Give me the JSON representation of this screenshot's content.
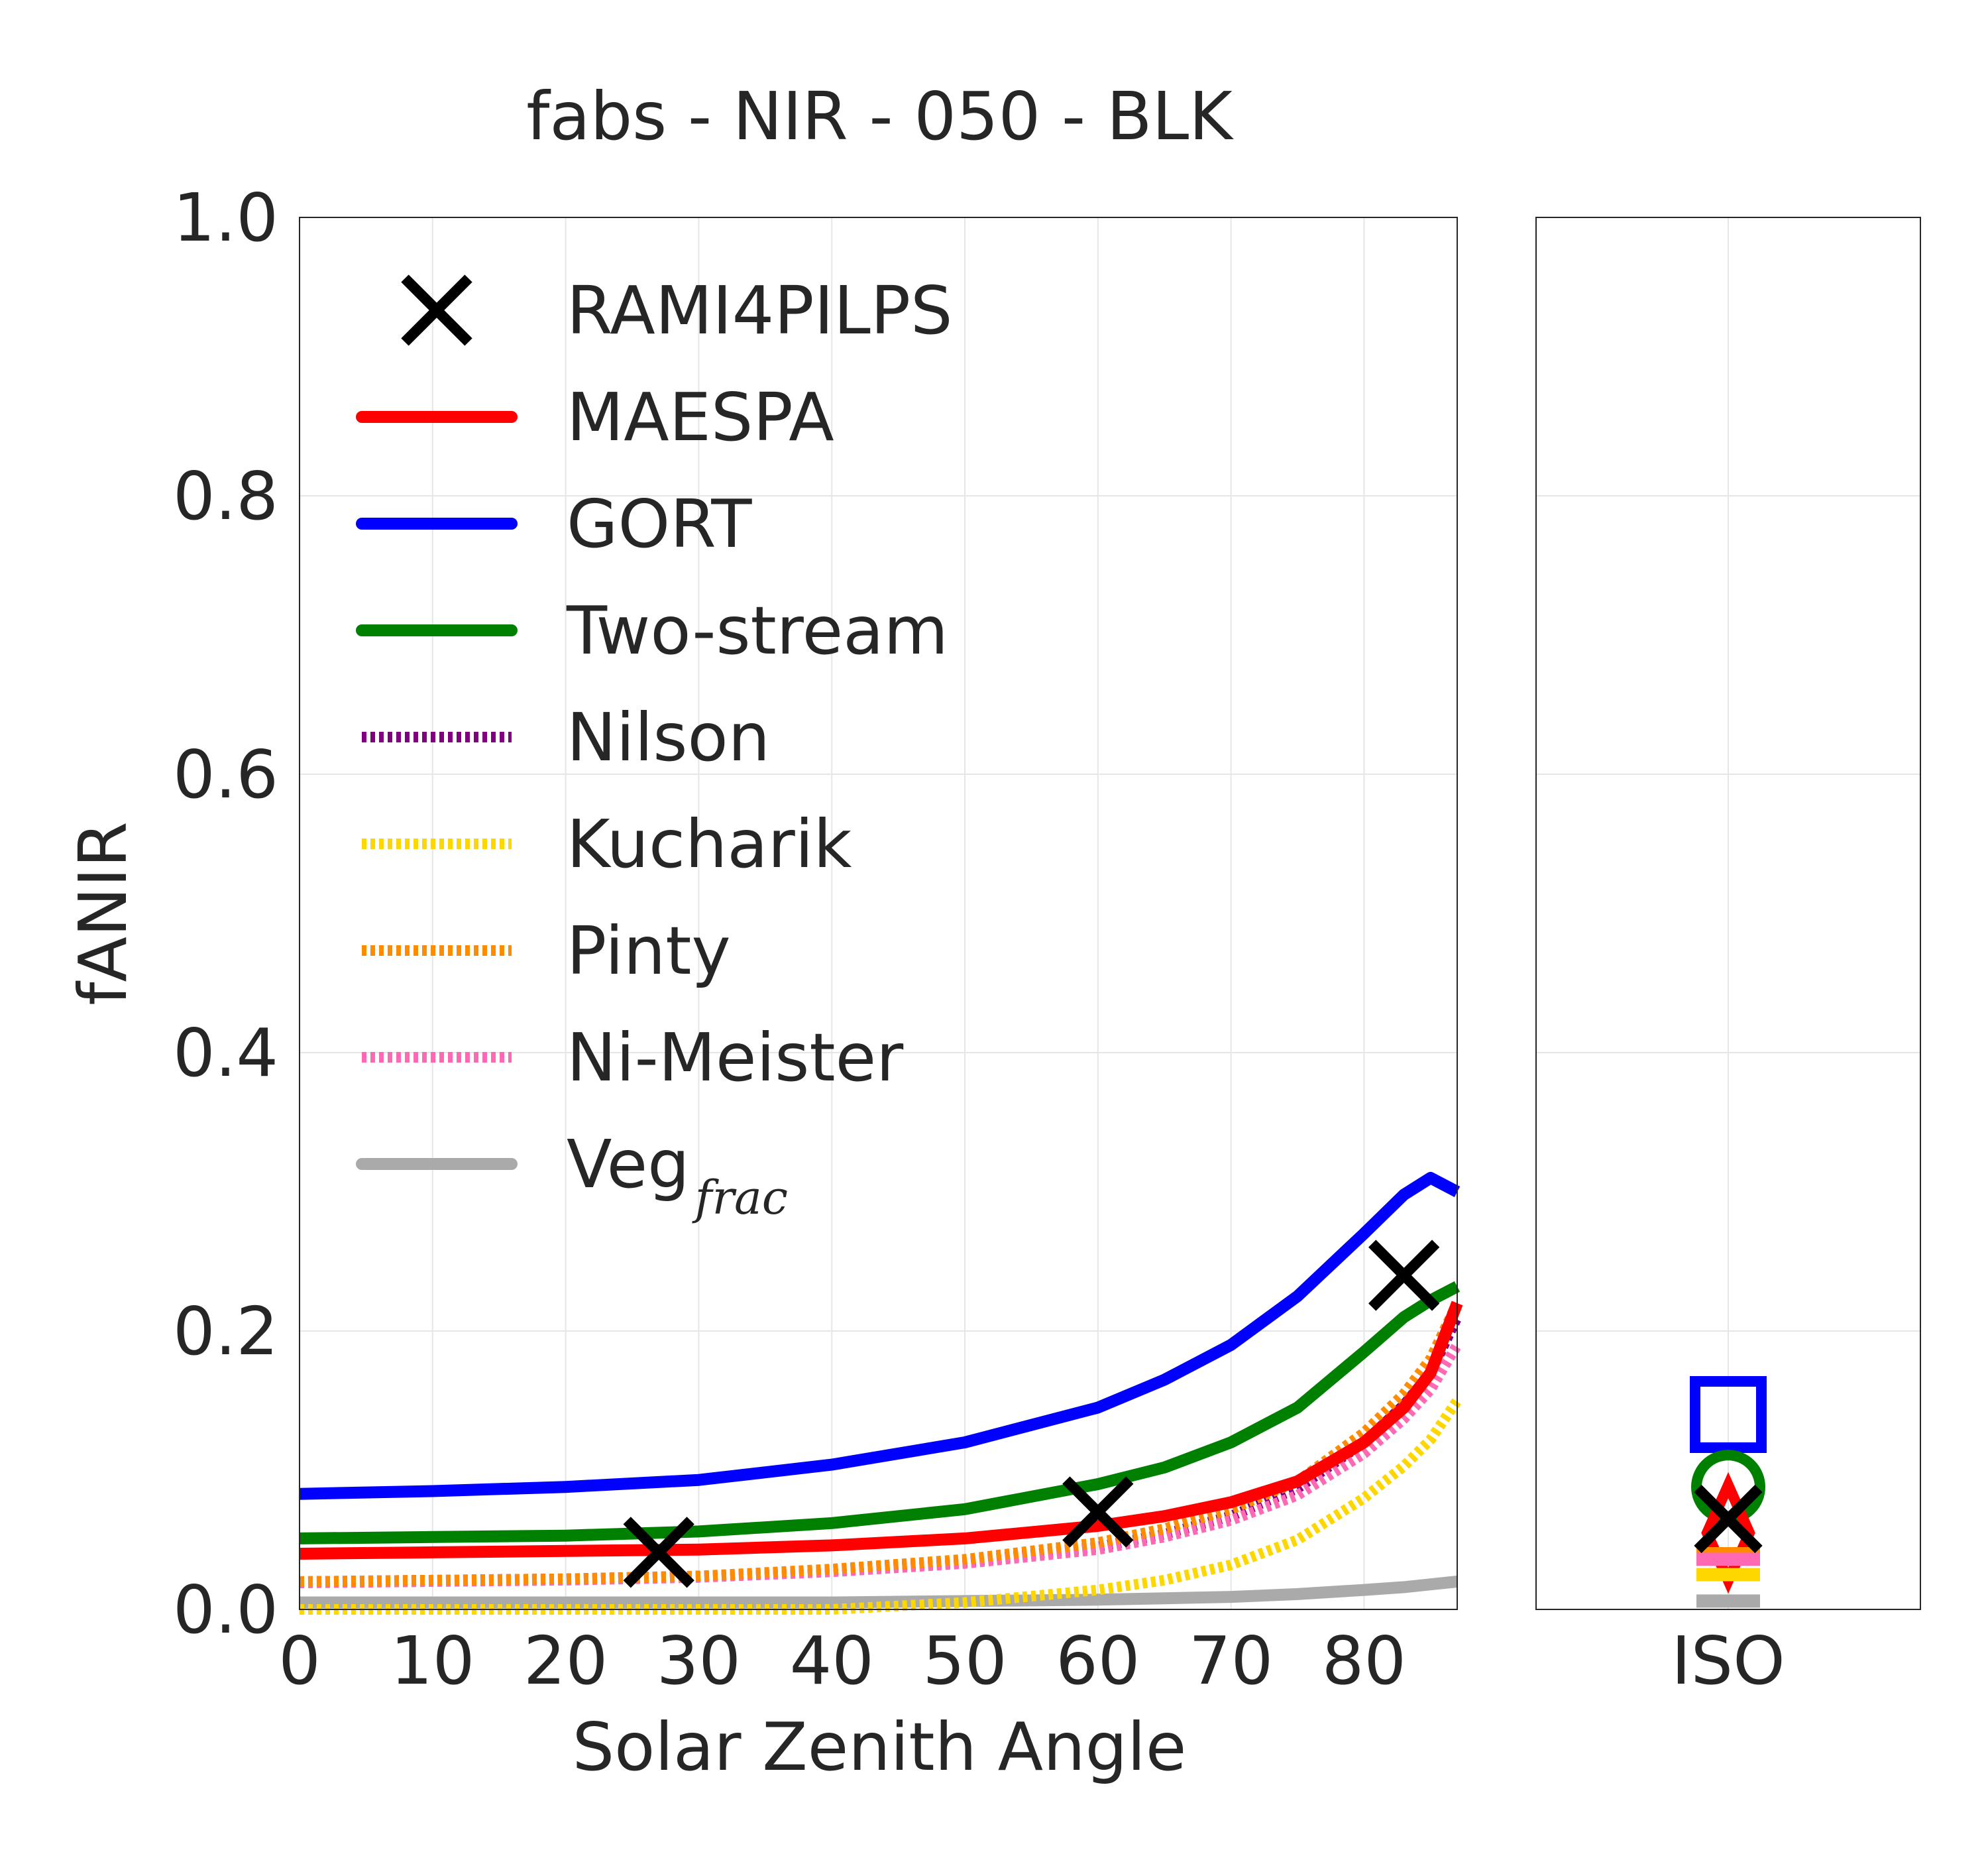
{
  "chart_data": {
    "type": "line",
    "title": "fabs - NIR - 050 - BLK",
    "xlabel": "Solar Zenith Angle",
    "ylabel": "fANIR",
    "xlim": [
      0,
      87
    ],
    "ylim": [
      0,
      1.0
    ],
    "x_ticks": [
      "0",
      "10",
      "20",
      "30",
      "40",
      "50",
      "60",
      "70",
      "80"
    ],
    "y_ticks": [
      "0.0",
      "0.2",
      "0.4",
      "0.6",
      "0.8",
      "1.0"
    ],
    "grid": true,
    "legend_position": "upper-left",
    "x": [
      0,
      10,
      20,
      30,
      40,
      50,
      60,
      65,
      70,
      75,
      80,
      83,
      85,
      87
    ],
    "reference": {
      "name": "RAMI4PILPS",
      "color": "#000000",
      "x": [
        27,
        60,
        83
      ],
      "y": [
        0.041,
        0.07,
        0.24
      ]
    },
    "series": [
      {
        "name": "MAESPA",
        "color": "#ff0000",
        "style": "solid",
        "values": [
          0.04,
          0.041,
          0.042,
          0.043,
          0.046,
          0.051,
          0.06,
          0.067,
          0.077,
          0.092,
          0.12,
          0.145,
          0.17,
          0.22
        ]
      },
      {
        "name": "GORT",
        "color": "#0000ff",
        "style": "solid",
        "values": [
          0.083,
          0.085,
          0.088,
          0.093,
          0.104,
          0.12,
          0.145,
          0.165,
          0.19,
          0.225,
          0.27,
          0.298,
          0.31,
          0.3
        ]
      },
      {
        "name": "Two-stream",
        "color": "#008000",
        "style": "solid",
        "values": [
          0.051,
          0.052,
          0.053,
          0.056,
          0.062,
          0.072,
          0.09,
          0.102,
          0.12,
          0.145,
          0.185,
          0.21,
          0.222,
          0.232
        ]
      },
      {
        "name": "Nilson",
        "color": "#800080",
        "style": "dotted",
        "values": [
          0.02,
          0.021,
          0.022,
          0.024,
          0.028,
          0.034,
          0.045,
          0.054,
          0.067,
          0.087,
          0.12,
          0.147,
          0.17,
          0.21
        ]
      },
      {
        "name": "Kucharik",
        "color": "#ffd700",
        "style": "dotted",
        "values": [
          0.0,
          0.0,
          0.0,
          0.0,
          0.0,
          0.005,
          0.014,
          0.021,
          0.032,
          0.05,
          0.08,
          0.103,
          0.122,
          0.15
        ]
      },
      {
        "name": "Pinty",
        "color": "#ff8c00",
        "style": "dotted",
        "values": [
          0.02,
          0.021,
          0.022,
          0.024,
          0.029,
          0.036,
          0.048,
          0.058,
          0.072,
          0.092,
          0.127,
          0.155,
          0.18,
          0.22
        ]
      },
      {
        "name": "Ni-Meister",
        "color": "#ff69b4",
        "style": "dotted",
        "values": [
          0.019,
          0.02,
          0.021,
          0.023,
          0.027,
          0.033,
          0.043,
          0.052,
          0.064,
          0.082,
          0.112,
          0.137,
          0.158,
          0.19
        ]
      },
      {
        "name": "Veg",
        "name_sub": "frac",
        "color": "#aaaaaa",
        "style": "solid",
        "values": [
          0.005,
          0.005,
          0.005,
          0.005,
          0.005,
          0.006,
          0.007,
          0.008,
          0.009,
          0.011,
          0.014,
          0.016,
          0.018,
          0.02
        ]
      }
    ],
    "iso_panel": {
      "xlabel": "ISO",
      "points": [
        {
          "model": "GORT",
          "marker": "square",
          "color": "#0000ff",
          "value": 0.14
        },
        {
          "model": "Two-stream",
          "marker": "circle",
          "color": "#008000",
          "value": 0.088
        },
        {
          "model": "MAESPA",
          "marker": "diamond",
          "color": "#ff0000",
          "value": 0.055
        },
        {
          "model": "Pinty",
          "marker": "bar",
          "color": "#ff8c00",
          "value": 0.04
        },
        {
          "model": "Ni-Meister",
          "marker": "bar",
          "color": "#ff69b4",
          "value": 0.036
        },
        {
          "model": "Kucharik",
          "marker": "bar",
          "color": "#ffd700",
          "value": 0.025
        },
        {
          "model": "Veg_frac",
          "marker": "bar",
          "color": "#aaaaaa",
          "value": 0.006
        },
        {
          "model": "RAMI4PILPS",
          "marker": "x",
          "color": "#000000",
          "value": 0.065
        }
      ]
    }
  }
}
